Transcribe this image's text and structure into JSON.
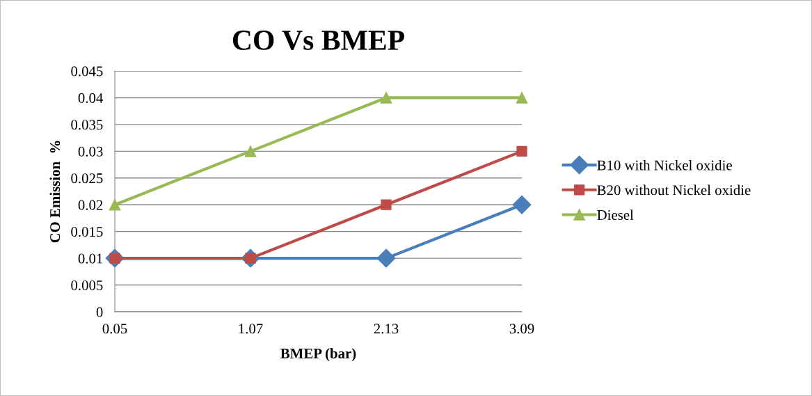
{
  "chart_data": {
    "type": "line",
    "title": "CO Vs BMEP",
    "xlabel": "BMEP (bar)",
    "ylabel": "CO Emission  %",
    "categories": [
      "0.05",
      "1.07",
      "2.13",
      "3.09"
    ],
    "series": [
      {
        "name": "B10 with Nickel oxidie",
        "color": "#4a7ebb",
        "marker": "diamond",
        "values": [
          0.01,
          0.01,
          0.01,
          0.02
        ]
      },
      {
        "name": "B20 without Nickel oxidie",
        "color": "#be4b48",
        "marker": "square",
        "values": [
          0.01,
          0.01,
          0.02,
          0.03
        ]
      },
      {
        "name": "Diesel",
        "color": "#98b954",
        "marker": "triangle",
        "values": [
          0.02,
          0.03,
          0.04,
          0.04
        ]
      }
    ],
    "ylim": [
      0,
      0.045
    ],
    "yticks": [
      0,
      0.005,
      0.01,
      0.015,
      0.02,
      0.025,
      0.03,
      0.035,
      0.04,
      0.045
    ],
    "grid": "y",
    "legend": "right",
    "line_style": "solid"
  }
}
